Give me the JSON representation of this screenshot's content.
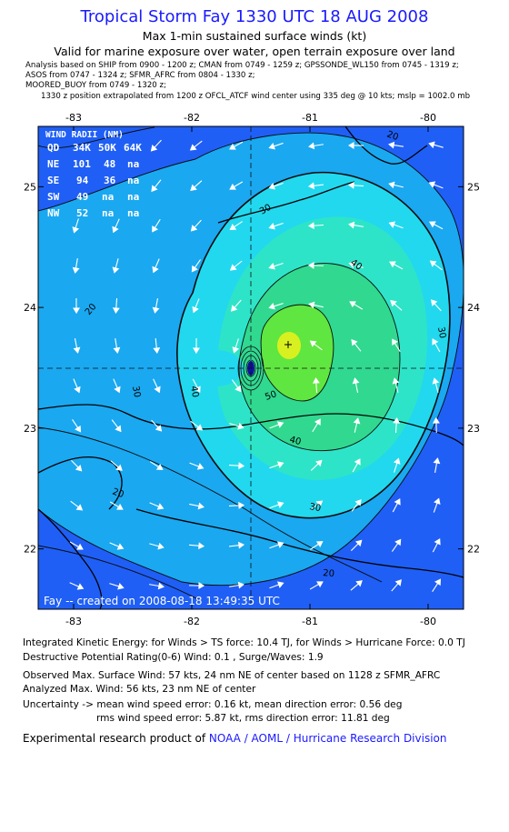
{
  "header": {
    "title": "Tropical Storm Fay 1330 UTC 18 AUG 2008",
    "subtitle_1": "Max 1-min sustained surface winds (kt)",
    "subtitle_2": "Valid for marine exposure over water, open terrain exposure over land",
    "obs_lines": [
      "Analysis based on   SHIP from 0900 - 1200 z;  CMAN from 0749 - 1259 z;  GPSSONDE_WL150 from 0745 - 1319 z;",
      "ASOS from 0747 - 1324 z;  SFMR_AFRC from 0804 - 1330 z;",
      "MOORED_BUOY from 0749 - 1320 z;",
      "1330 z position extrapolated from 1200 z OFCL_ATCF wind center using 335 deg @ 10 kts; mslp = 1002.0 mb"
    ]
  },
  "colors": {
    "title": "#1a1aff",
    "outer_blue": "#1f5ff5",
    "mid_blue": "#1aa8f0",
    "cyan": "#22d8ee",
    "teal": "#2ee4c8",
    "green": "#30d890",
    "lime": "#60e640",
    "yellow": "#d8f020",
    "center_dark_blue": "#1010a0"
  },
  "chart_data": {
    "type": "contour",
    "xlabel": "",
    "ylabel": "",
    "xlim": [
      -83.3,
      -79.7
    ],
    "ylim": [
      21.5,
      25.5
    ],
    "x_ticks": [
      "-83",
      "-82",
      "-81",
      "-80"
    ],
    "y_ticks": [
      "25",
      "24",
      "23",
      "22"
    ],
    "contour_levels_kt": [
      20,
      30,
      34,
      40,
      50
    ],
    "contour_labels": [
      "20",
      "30",
      "30",
      "40",
      "40",
      "20",
      "30",
      "20",
      "20",
      "30",
      "40",
      "50"
    ],
    "storm_center": {
      "lon": -81.3,
      "lat": 23.45
    },
    "max_wind_position": {
      "lon": -81.0,
      "lat": 23.65
    },
    "crosshair": true,
    "legend": {
      "title": "WIND RADII (NM)",
      "columns": [
        "QD",
        "34K",
        "50K",
        "64K"
      ],
      "rows": [
        [
          "NE",
          "101",
          "48",
          "na"
        ],
        [
          "SE",
          "94",
          "36",
          "na"
        ],
        [
          "SW",
          "49",
          "na",
          "na"
        ],
        [
          "NW",
          "52",
          "na",
          "na"
        ]
      ]
    },
    "footer_stamp": "Fay -- created on 2008-08-18 13:49:35 UTC"
  },
  "footer": {
    "ike_line": "Integrated Kinetic Energy:  for Winds > TS force: 10.4 TJ,  for Winds > Hurricane Force: 0.0 TJ",
    "dpr_line": "Destructive Potential Rating(0-6)   Wind: 0.1 , Surge/Waves: 1.9",
    "obsmax_line": "Observed Max. Surface Wind: 57 kts, 24 nm NE of center based on 1128 z SFMR_AFRC",
    "anamax_line": "Analyzed Max. Wind: 56 kts, 23 nm NE of center",
    "unc_line_1": "Uncertainty -> mean wind speed error: 0.16 kt,   mean direction error: 0.56 deg",
    "unc_line_2": "rms wind speed error: 5.87 kt,   rms direction error: 11.81 deg",
    "credit_prefix": "Experimental research product of ",
    "credit_link": "NOAA / AOML / Hurricane Research Division"
  }
}
